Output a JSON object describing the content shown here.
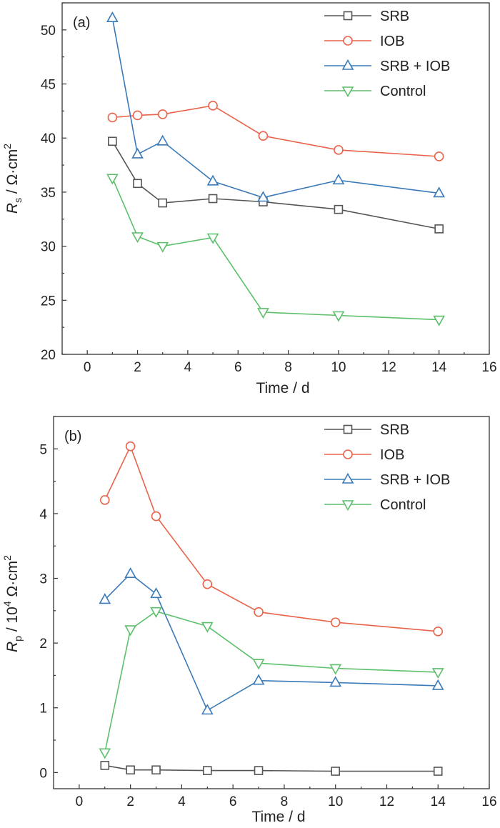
{
  "chart_data": [
    {
      "type": "line",
      "panel_label": "(a)",
      "xlabel": "Time / d",
      "ylabel_main": "R",
      "ylabel_sub": "s",
      "ylabel_rest": " / Ω·cm",
      "ylabel_sup": "2",
      "xlim": [
        -1,
        16
      ],
      "ylim": [
        20,
        52.5
      ],
      "xticks": [
        0,
        2,
        4,
        6,
        8,
        10,
        12,
        14,
        16
      ],
      "yticks": [
        20,
        25,
        30,
        35,
        40,
        45,
        50
      ],
      "legend_position": "top-right",
      "grid": false,
      "x": [
        1,
        2,
        3,
        5,
        7,
        10,
        14
      ],
      "series": [
        {
          "name": "SRB",
          "color": "#555555",
          "marker": "square",
          "values": [
            39.7,
            35.8,
            34.0,
            34.4,
            34.1,
            33.4,
            31.6
          ]
        },
        {
          "name": "IOB",
          "color": "#e8634a",
          "marker": "circle",
          "values": [
            41.9,
            42.1,
            42.2,
            43.0,
            40.2,
            38.9,
            38.3
          ]
        },
        {
          "name": "SRB + IOB",
          "color": "#3a7ab8",
          "marker": "triangle-up",
          "values": [
            51.1,
            38.5,
            39.7,
            36.0,
            34.5,
            36.1,
            34.9
          ]
        },
        {
          "name": "Control",
          "color": "#5cbf6a",
          "marker": "triangle-down",
          "values": [
            36.3,
            30.9,
            30.0,
            30.8,
            23.9,
            23.6,
            23.2
          ]
        }
      ]
    },
    {
      "type": "line",
      "panel_label": "(b)",
      "xlabel": "Time / d",
      "ylabel_main": "R",
      "ylabel_sub": "p",
      "ylabel_rest": " / 10",
      "ylabel_sup": "4",
      "ylabel_tail": " Ω·cm",
      "ylabel_sup2": "2",
      "xlim": [
        -1,
        16
      ],
      "ylim": [
        -0.25,
        5.5
      ],
      "xticks": [
        0,
        2,
        4,
        6,
        8,
        10,
        12,
        14,
        16
      ],
      "yticks": [
        0,
        1,
        2,
        3,
        4,
        5
      ],
      "legend_position": "top-right",
      "grid": false,
      "x": [
        1,
        2,
        3,
        5,
        7,
        10,
        14
      ],
      "series": [
        {
          "name": "SRB",
          "color": "#555555",
          "marker": "square",
          "values": [
            0.11,
            0.04,
            0.04,
            0.03,
            0.03,
            0.02,
            0.02
          ]
        },
        {
          "name": "IOB",
          "color": "#e8634a",
          "marker": "circle",
          "values": [
            4.21,
            5.04,
            3.96,
            2.91,
            2.48,
            2.32,
            2.18
          ]
        },
        {
          "name": "SRB + IOB",
          "color": "#3a7ab8",
          "marker": "triangle-up",
          "values": [
            2.67,
            3.07,
            2.76,
            0.96,
            1.42,
            1.39,
            1.34
          ]
        },
        {
          "name": "Control",
          "color": "#5cbf6a",
          "marker": "triangle-down",
          "values": [
            0.31,
            2.21,
            2.49,
            2.26,
            1.69,
            1.61,
            1.55
          ]
        }
      ]
    }
  ]
}
